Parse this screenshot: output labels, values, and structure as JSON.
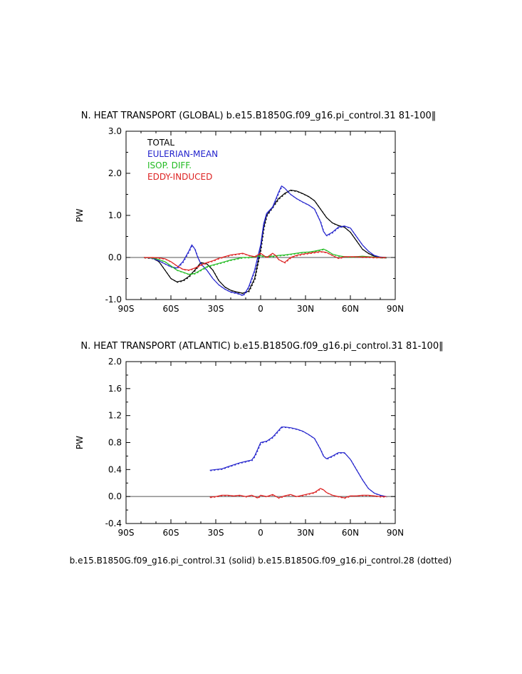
{
  "chart_data": [
    {
      "type": "line",
      "title": "N. HEAT TRANSPORT (GLOBAL) b.e15.B1850G.f09_g16.pi_control.31 ‌81-100‖",
      "ylabel": "PW",
      "xlim": [
        -90,
        90
      ],
      "ylim": [
        -1.0,
        3.0
      ],
      "xticks": [
        -90,
        -60,
        -30,
        0,
        30,
        60,
        90
      ],
      "xtick_labels": [
        "90S",
        "60S",
        "30S",
        "0",
        "30N",
        "60N",
        "90N"
      ],
      "yticks": [
        -1.0,
        0.0,
        1.0,
        2.0,
        3.0
      ],
      "ytick_labels": [
        "-1.0",
        "0.0",
        "1.0",
        "2.0",
        "3.0"
      ],
      "grid": false,
      "zero_line": true,
      "legend": [
        {
          "label": "TOTAL",
          "color": "#000000"
        },
        {
          "label": "EULERIAN-MEAN",
          "color": "#2222cc"
        },
        {
          "label": "ISOP. DIFF.",
          "color": "#22bb22"
        },
        {
          "label": "EDDY-INDUCED",
          "color": "#dd2222"
        }
      ],
      "series": [
        {
          "name": "TOTAL",
          "color": "#000000",
          "x": [
            -78,
            -72,
            -68,
            -64,
            -60,
            -56,
            -52,
            -48,
            -44,
            -40,
            -36,
            -32,
            -28,
            -24,
            -20,
            -16,
            -12,
            -8,
            -4,
            0,
            2,
            4,
            8,
            12,
            16,
            20,
            24,
            28,
            32,
            36,
            40,
            44,
            48,
            52,
            56,
            60,
            64,
            68,
            72,
            76,
            80,
            84
          ],
          "y": [
            0,
            -0.02,
            -0.1,
            -0.3,
            -0.5,
            -0.58,
            -0.55,
            -0.45,
            -0.3,
            -0.12,
            -0.15,
            -0.3,
            -0.55,
            -0.7,
            -0.78,
            -0.82,
            -0.85,
            -0.8,
            -0.5,
            0.2,
            0.7,
            1.0,
            1.2,
            1.4,
            1.52,
            1.6,
            1.58,
            1.52,
            1.45,
            1.35,
            1.15,
            0.95,
            0.82,
            0.76,
            0.72,
            0.6,
            0.4,
            0.2,
            0.1,
            0.03,
            0.0,
            0.0
          ]
        },
        {
          "name": "EULERIAN-MEAN",
          "color": "#2222cc",
          "x": [
            -78,
            -72,
            -68,
            -64,
            -60,
            -56,
            -52,
            -48,
            -46,
            -44,
            -42,
            -40,
            -36,
            -32,
            -28,
            -24,
            -20,
            -16,
            -12,
            -10,
            -8,
            -4,
            0,
            2,
            4,
            8,
            12,
            14,
            16,
            20,
            24,
            28,
            32,
            36,
            40,
            42,
            44,
            48,
            52,
            56,
            60,
            64,
            68,
            72,
            76,
            80,
            84
          ],
          "y": [
            0,
            -0.02,
            -0.08,
            -0.15,
            -0.22,
            -0.25,
            -0.1,
            0.15,
            0.3,
            0.2,
            0.0,
            -0.15,
            -0.3,
            -0.5,
            -0.65,
            -0.75,
            -0.82,
            -0.85,
            -0.9,
            -0.82,
            -0.7,
            -0.3,
            0.3,
            0.8,
            1.05,
            1.2,
            1.55,
            1.7,
            1.65,
            1.5,
            1.4,
            1.32,
            1.25,
            1.15,
            0.85,
            0.62,
            0.52,
            0.6,
            0.72,
            0.75,
            0.7,
            0.5,
            0.3,
            0.15,
            0.05,
            0.01,
            0.0
          ]
        },
        {
          "name": "ISOP. DIFF.",
          "color": "#22bb22",
          "x": [
            -78,
            -72,
            -68,
            -64,
            -60,
            -56,
            -52,
            -48,
            -44,
            -40,
            -36,
            -32,
            -28,
            -24,
            -20,
            -16,
            -12,
            -8,
            -4,
            0,
            4,
            8,
            12,
            16,
            20,
            24,
            28,
            32,
            36,
            40,
            42,
            44,
            48,
            52,
            56,
            60,
            64,
            68,
            72,
            76,
            80,
            84
          ],
          "y": [
            0,
            -0.01,
            -0.05,
            -0.1,
            -0.2,
            -0.3,
            -0.35,
            -0.4,
            -0.38,
            -0.3,
            -0.22,
            -0.18,
            -0.14,
            -0.1,
            -0.06,
            -0.03,
            0.0,
            0.0,
            0.02,
            0.04,
            0.02,
            0.03,
            0.05,
            0.06,
            0.08,
            0.1,
            0.12,
            0.13,
            0.15,
            0.18,
            0.2,
            0.17,
            0.08,
            0.04,
            0.02,
            0.01,
            0.02,
            0.03,
            0.02,
            0.01,
            0.0,
            0.0
          ]
        },
        {
          "name": "EDDY-INDUCED",
          "color": "#dd2222",
          "x": [
            -78,
            -72,
            -68,
            -64,
            -60,
            -56,
            -52,
            -48,
            -44,
            -40,
            -36,
            -32,
            -28,
            -24,
            -20,
            -16,
            -12,
            -8,
            -4,
            -2,
            0,
            2,
            4,
            6,
            8,
            10,
            12,
            16,
            20,
            24,
            28,
            32,
            36,
            40,
            44,
            48,
            52,
            56,
            60,
            64,
            68,
            72,
            76,
            80,
            84
          ],
          "y": [
            0,
            0,
            -0.01,
            -0.03,
            -0.1,
            -0.2,
            -0.28,
            -0.3,
            -0.25,
            -0.18,
            -0.12,
            -0.08,
            -0.02,
            0.02,
            0.06,
            0.08,
            0.1,
            0.05,
            0.02,
            0.06,
            0.1,
            0.05,
            0.0,
            0.05,
            0.1,
            0.05,
            -0.05,
            -0.12,
            0.0,
            0.05,
            0.08,
            0.1,
            0.12,
            0.14,
            0.12,
            0.05,
            -0.02,
            0.02,
            0.02,
            0.02,
            0.01,
            0.01,
            0.0,
            0.0,
            0.0
          ]
        }
      ]
    },
    {
      "type": "line",
      "title": "N. HEAT TRANSPORT (ATLANTIC) b.e15.B1850G.f09_g16.pi_control.31 ‌81-100‖",
      "ylabel": "PW",
      "xlim": [
        -90,
        90
      ],
      "ylim": [
        -0.4,
        2.0
      ],
      "xticks": [
        -90,
        -60,
        -30,
        0,
        30,
        60,
        90
      ],
      "xtick_labels": [
        "90S",
        "60S",
        "30S",
        "0",
        "30N",
        "60N",
        "90N"
      ],
      "yticks": [
        -0.4,
        0.0,
        0.4,
        0.8,
        1.2,
        1.6,
        2.0
      ],
      "ytick_labels": [
        "-0.4",
        "0.0",
        "0.4",
        "0.8",
        "1.2",
        "1.6",
        "2.0"
      ],
      "grid": false,
      "zero_line": true,
      "series": [
        {
          "color": "#2222cc",
          "x": [
            -34,
            -30,
            -26,
            -22,
            -18,
            -14,
            -10,
            -8,
            -6,
            -4,
            -2,
            0,
            4,
            8,
            12,
            14,
            16,
            20,
            24,
            28,
            32,
            36,
            40,
            42,
            44,
            48,
            52,
            56,
            60,
            64,
            68,
            72,
            76,
            80,
            84
          ],
          "y": [
            0.39,
            0.4,
            0.41,
            0.44,
            0.47,
            0.5,
            0.52,
            0.53,
            0.54,
            0.6,
            0.7,
            0.8,
            0.82,
            0.88,
            0.98,
            1.03,
            1.03,
            1.02,
            1.0,
            0.97,
            0.92,
            0.86,
            0.7,
            0.6,
            0.56,
            0.6,
            0.65,
            0.65,
            0.55,
            0.4,
            0.25,
            0.12,
            0.05,
            0.02,
            0.0
          ]
        },
        {
          "color": "#dd2222",
          "x": [
            -34,
            -30,
            -26,
            -22,
            -18,
            -14,
            -10,
            -6,
            -2,
            0,
            4,
            8,
            12,
            16,
            20,
            24,
            28,
            32,
            36,
            40,
            42,
            44,
            48,
            52,
            56,
            60,
            64,
            68,
            72,
            76,
            80,
            84
          ],
          "y": [
            -0.01,
            0.0,
            0.02,
            0.02,
            0.01,
            0.02,
            0.0,
            0.02,
            -0.02,
            0.02,
            0.0,
            0.03,
            -0.02,
            0.01,
            0.03,
            0.0,
            0.02,
            0.04,
            0.06,
            0.12,
            0.1,
            0.06,
            0.02,
            0.0,
            -0.02,
            0.01,
            0.01,
            0.02,
            0.02,
            0.01,
            0.0,
            0.0
          ]
        }
      ]
    }
  ],
  "footer": "b.e15.B1850G.f09_g16.pi_control.31 (solid) b.e15.B1850G.f09_g16.pi_control.28 (dotted)"
}
